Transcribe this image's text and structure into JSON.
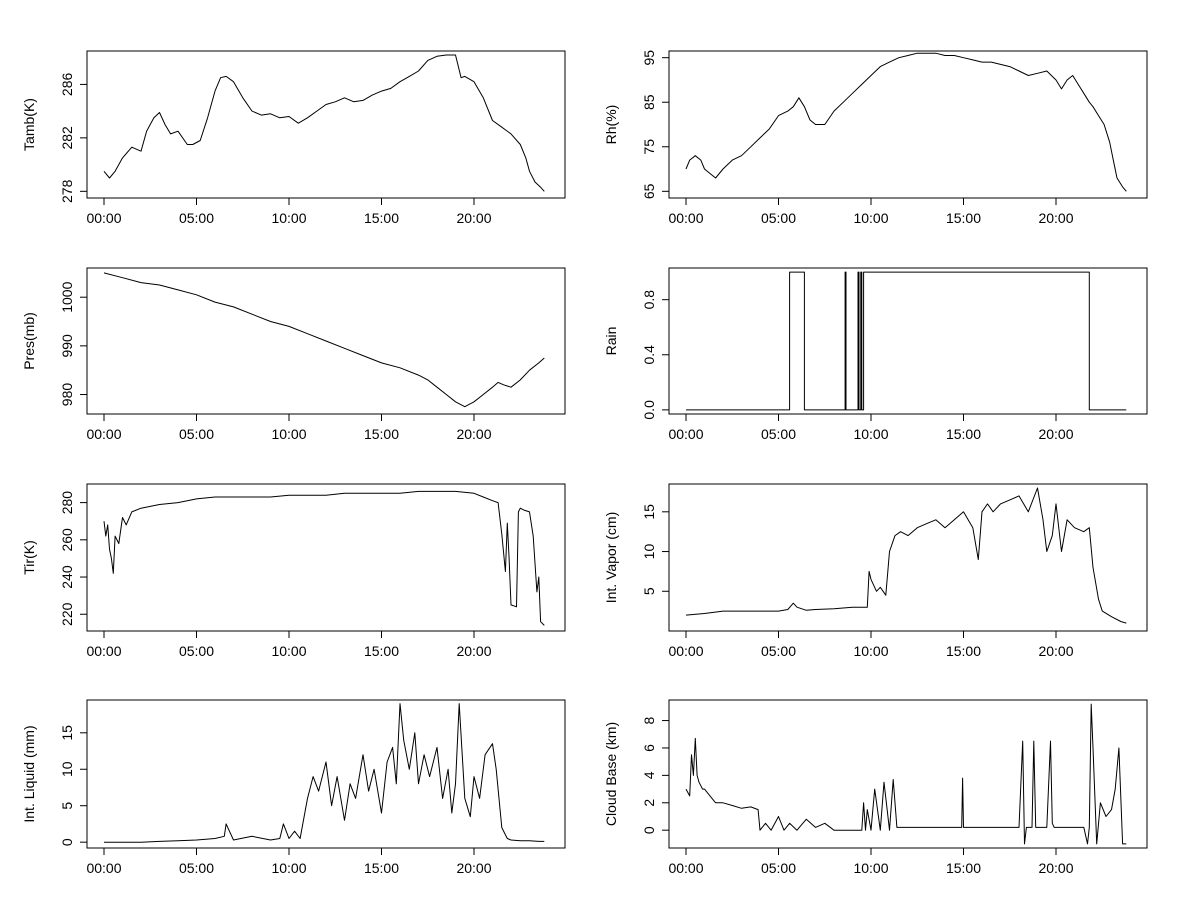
{
  "chart_data": [
    {
      "type": "line",
      "ylabel": "Tamb(K)",
      "xlim": [
        0,
        24
      ],
      "ylim": [
        277.5,
        288.5
      ],
      "xticks": [
        0,
        5,
        10,
        15,
        20
      ],
      "xtick_labels": [
        "00:00",
        "05:00",
        "10:00",
        "15:00",
        "20:00"
      ],
      "yticks": [
        278,
        282,
        286
      ],
      "ytick_labels": [
        "278",
        "282",
        "286"
      ],
      "x": [
        0,
        0.3,
        0.6,
        1.0,
        1.5,
        2.0,
        2.3,
        2.7,
        3.0,
        3.3,
        3.6,
        4.0,
        4.5,
        4.8,
        5.2,
        5.6,
        6.0,
        6.3,
        6.6,
        7.0,
        7.5,
        8.0,
        8.5,
        9.0,
        9.5,
        10.0,
        10.5,
        11.0,
        11.5,
        12.0,
        12.5,
        13.0,
        13.5,
        14.0,
        14.5,
        15.0,
        15.5,
        16.0,
        16.5,
        17.0,
        17.5,
        18.0,
        18.5,
        19.0,
        19.3,
        19.5,
        20.0,
        20.5,
        21.0,
        21.5,
        22.0,
        22.5,
        22.8,
        23.0,
        23.3,
        23.6,
        23.8
      ],
      "y": [
        279.5,
        279.0,
        279.5,
        280.5,
        281.3,
        281.0,
        282.5,
        283.5,
        283.9,
        283.0,
        282.3,
        282.5,
        281.5,
        281.5,
        281.8,
        283.5,
        285.5,
        286.5,
        286.6,
        286.2,
        285.0,
        284.0,
        283.7,
        283.8,
        283.5,
        283.6,
        283.1,
        283.5,
        284.0,
        284.5,
        284.7,
        285.0,
        284.7,
        284.8,
        285.2,
        285.5,
        285.7,
        286.2,
        286.6,
        287.0,
        287.8,
        288.1,
        288.2,
        288.2,
        286.5,
        286.6,
        286.2,
        285.0,
        283.3,
        282.8,
        282.3,
        281.5,
        280.5,
        279.5,
        278.7,
        278.3,
        278.0
      ]
    },
    {
      "type": "line",
      "ylabel": "Rh(%)",
      "xlim": [
        0,
        24
      ],
      "ylim": [
        63.5,
        96.5
      ],
      "xticks": [
        0,
        5,
        10,
        15,
        20
      ],
      "xtick_labels": [
        "00:00",
        "05:00",
        "10:00",
        "15:00",
        "20:00"
      ],
      "yticks": [
        65,
        75,
        85,
        95
      ],
      "ytick_labels": [
        "65",
        "75",
        "85",
        "95"
      ],
      "x": [
        0,
        0.2,
        0.5,
        0.8,
        1.0,
        1.3,
        1.6,
        2.0,
        2.5,
        3.0,
        3.5,
        4.0,
        4.5,
        5.0,
        5.5,
        5.8,
        6.1,
        6.4,
        6.7,
        7.0,
        7.5,
        8.0,
        8.5,
        9.0,
        9.5,
        10.0,
        10.5,
        11.0,
        11.5,
        12.0,
        12.5,
        13.0,
        13.5,
        14.0,
        14.5,
        15.0,
        15.5,
        16.0,
        16.5,
        17.0,
        17.5,
        18.0,
        18.5,
        19.0,
        19.5,
        20.0,
        20.3,
        20.6,
        20.9,
        21.2,
        21.5,
        21.8,
        22.0,
        22.3,
        22.6,
        22.9,
        23.1,
        23.3,
        23.6,
        23.8
      ],
      "y": [
        70,
        72,
        73,
        72,
        70,
        69,
        68,
        70,
        72,
        73,
        75,
        77,
        79,
        82,
        83,
        84,
        86,
        84,
        81,
        80,
        80,
        83,
        85,
        87,
        89,
        91,
        93,
        94,
        95,
        95.5,
        96,
        96,
        96,
        95.5,
        95.5,
        95,
        94.5,
        94,
        94,
        93.5,
        93,
        92,
        91,
        91.5,
        92,
        90,
        88,
        90,
        91,
        89,
        87,
        85,
        84,
        82,
        80,
        76,
        72,
        68,
        66,
        65
      ]
    },
    {
      "type": "line",
      "ylabel": "Pres(mb)",
      "xlim": [
        0,
        24
      ],
      "ylim": [
        976,
        1006
      ],
      "xticks": [
        0,
        5,
        10,
        15,
        20
      ],
      "xtick_labels": [
        "00:00",
        "05:00",
        "10:00",
        "15:00",
        "20:00"
      ],
      "yticks": [
        980,
        990,
        1000
      ],
      "ytick_labels": [
        "980",
        "990",
        "1000"
      ],
      "x": [
        0,
        1,
        2,
        3,
        4,
        5,
        6,
        7,
        8,
        9,
        10,
        11,
        12,
        13,
        14,
        15,
        16,
        17,
        17.5,
        18,
        18.5,
        19,
        19.5,
        20,
        20.5,
        21.0,
        21.3,
        21.6,
        22.0,
        22.5,
        23.0,
        23.5,
        23.8
      ],
      "y": [
        1005,
        1004,
        1003,
        1002.5,
        1001.5,
        1000.5,
        999,
        998,
        996.5,
        995,
        994,
        992.5,
        991,
        989.5,
        988,
        986.5,
        985.5,
        984,
        983,
        981.5,
        980,
        978.5,
        977.5,
        978.5,
        980,
        981.5,
        982.5,
        982,
        981.5,
        983,
        985,
        986.5,
        987.5
      ]
    },
    {
      "type": "line",
      "ylabel": "Rain",
      "xlim": [
        0,
        24
      ],
      "ylim": [
        -0.03,
        1.03
      ],
      "xticks": [
        0,
        5,
        10,
        15,
        20
      ],
      "xtick_labels": [
        "00:00",
        "05:00",
        "10:00",
        "15:00",
        "20:00"
      ],
      "yticks": [
        0,
        0.4,
        0.8
      ],
      "ytick_labels": [
        "0.0",
        "0.4",
        "0.8"
      ],
      "x": [
        0,
        5.6,
        5.6,
        6.4,
        6.4,
        8.6,
        8.6,
        8.65,
        8.65,
        9.3,
        9.3,
        9.35,
        9.35,
        9.45,
        9.45,
        9.5,
        9.5,
        9.6,
        9.6,
        9.65,
        9.65,
        21.8,
        21.8,
        23.8
      ],
      "y": [
        0,
        0,
        1,
        1,
        0,
        0,
        1,
        1,
        0,
        0,
        1,
        1,
        0,
        0,
        1,
        1,
        0,
        0,
        1,
        1,
        1,
        1,
        0,
        0
      ]
    },
    {
      "type": "line",
      "ylabel": "Tir(K)",
      "xlim": [
        0,
        24
      ],
      "ylim": [
        211,
        290
      ],
      "xticks": [
        0,
        5,
        10,
        15,
        20
      ],
      "xtick_labels": [
        "00:00",
        "05:00",
        "10:00",
        "15:00",
        "20:00"
      ],
      "yticks": [
        220,
        240,
        260,
        280
      ],
      "ytick_labels": [
        "220",
        "240",
        "260",
        "280"
      ],
      "x": [
        0,
        0.1,
        0.2,
        0.3,
        0.4,
        0.5,
        0.6,
        0.8,
        1.0,
        1.2,
        1.5,
        2.0,
        3.0,
        4.0,
        5.0,
        6.0,
        7.0,
        8.0,
        9.0,
        10.0,
        11.0,
        12.0,
        13.0,
        14.0,
        15.0,
        16.0,
        17.0,
        18.0,
        19.0,
        20.0,
        20.5,
        21.0,
        21.3,
        21.5,
        21.7,
        21.8,
        21.9,
        22.0,
        22.3,
        22.4,
        22.5,
        22.7,
        23.0,
        23.2,
        23.4,
        23.5,
        23.6,
        23.8
      ],
      "y": [
        270,
        262,
        268,
        255,
        250,
        242,
        262,
        258,
        272,
        268,
        275,
        277,
        279,
        280,
        282,
        283,
        283,
        283,
        283,
        284,
        284,
        284,
        285,
        285,
        285,
        285,
        286,
        286,
        286,
        285,
        283,
        281,
        280,
        263,
        243,
        269,
        250,
        225,
        224,
        275,
        277,
        276,
        275,
        262,
        232,
        240,
        216,
        214
      ]
    },
    {
      "type": "line",
      "ylabel": "Int. Vapor (cm)",
      "xlim": [
        0,
        24
      ],
      "ylim": [
        0,
        18.5
      ],
      "xticks": [
        0,
        5,
        10,
        15,
        20
      ],
      "xtick_labels": [
        "00:00",
        "05:00",
        "10:00",
        "15:00",
        "20:00"
      ],
      "yticks": [
        5,
        10,
        15
      ],
      "ytick_labels": [
        "5",
        "10",
        "15"
      ],
      "x": [
        0,
        1,
        2,
        3,
        4,
        5,
        5.5,
        5.8,
        6.0,
        6.5,
        7,
        8,
        9,
        9.8,
        9.9,
        10.0,
        10.3,
        10.5,
        10.8,
        11.0,
        11.3,
        11.6,
        12.0,
        12.5,
        13.0,
        13.5,
        14.0,
        14.5,
        15.0,
        15.5,
        15.8,
        16.0,
        16.3,
        16.6,
        17.0,
        17.5,
        18.0,
        18.5,
        19.0,
        19.3,
        19.5,
        19.8,
        20.0,
        20.3,
        20.6,
        21.0,
        21.5,
        21.8,
        22.0,
        22.3,
        22.5,
        23.0,
        23.5,
        23.8
      ],
      "y": [
        2,
        2.2,
        2.5,
        2.5,
        2.5,
        2.5,
        2.7,
        3.5,
        3,
        2.6,
        2.7,
        2.8,
        3,
        3,
        7.5,
        6.5,
        5,
        5.5,
        4.5,
        10,
        12,
        12.5,
        12,
        13,
        13.5,
        14,
        13,
        14,
        15,
        13,
        9,
        15,
        16,
        15,
        16,
        16.5,
        17,
        15,
        18,
        14,
        10,
        12,
        16,
        10,
        14,
        13,
        12.5,
        13,
        8,
        4,
        2.5,
        1.8,
        1.2,
        1
      ]
    },
    {
      "type": "line",
      "ylabel": "Int. Liquid (mm)",
      "xlim": [
        0,
        24
      ],
      "ylim": [
        -0.8,
        19.5
      ],
      "xticks": [
        0,
        5,
        10,
        15,
        20
      ],
      "xtick_labels": [
        "00:00",
        "05:00",
        "10:00",
        "15:00",
        "20:00"
      ],
      "yticks": [
        0,
        5,
        10,
        15
      ],
      "ytick_labels": [
        "0",
        "5",
        "10",
        "15"
      ],
      "x": [
        0,
        1,
        2,
        3,
        4,
        5,
        6,
        6.5,
        6.6,
        7,
        8,
        9,
        9.5,
        9.7,
        10,
        10.3,
        10.6,
        11,
        11.3,
        11.6,
        12,
        12.3,
        12.6,
        13,
        13.3,
        13.6,
        14,
        14.3,
        14.6,
        15,
        15.3,
        15.6,
        15.8,
        16,
        16.2,
        16.5,
        16.8,
        17,
        17.3,
        17.6,
        18,
        18.3,
        18.6,
        18.8,
        19.0,
        19.2,
        19.5,
        19.8,
        20,
        20.3,
        20.6,
        21,
        21.2,
        21.5,
        21.8,
        22,
        22.5,
        23,
        23.5,
        23.8
      ],
      "y": [
        0,
        0,
        0,
        0.1,
        0.2,
        0.3,
        0.5,
        0.8,
        2.5,
        0.3,
        0.8,
        0.3,
        0.5,
        2.5,
        0.5,
        1.5,
        0.5,
        6,
        9,
        7,
        11,
        5,
        9,
        3,
        8,
        6,
        12,
        7,
        10,
        4,
        11,
        13,
        8,
        19,
        14,
        10,
        15,
        8,
        12,
        9,
        13,
        6,
        10,
        4,
        8,
        19,
        6,
        3.5,
        9,
        6,
        12,
        13.5,
        10,
        2,
        0.5,
        0.3,
        0.2,
        0.2,
        0.1,
        0.1
      ]
    },
    {
      "type": "line",
      "ylabel": "Cloud Base (km)",
      "xlim": [
        0,
        24
      ],
      "ylim": [
        -1.3,
        9.5
      ],
      "xticks": [
        0,
        5,
        10,
        15,
        20
      ],
      "xtick_labels": [
        "00:00",
        "05:00",
        "10:00",
        "15:00",
        "20:00"
      ],
      "yticks": [
        0,
        2,
        4,
        6,
        8
      ],
      "ytick_labels": [
        "0",
        "2",
        "4",
        "6",
        "8"
      ],
      "x": [
        0,
        0.2,
        0.3,
        0.4,
        0.5,
        0.6,
        0.7,
        0.9,
        1.0,
        1.3,
        1.6,
        2.0,
        2.5,
        3.0,
        3.5,
        3.9,
        4.0,
        4.3,
        4.6,
        5.0,
        5.3,
        5.6,
        6.0,
        6.5,
        7.0,
        7.5,
        8.0,
        9.0,
        9.5,
        9.6,
        9.7,
        9.8,
        10.0,
        10.2,
        10.5,
        10.7,
        11.0,
        11.2,
        11.4,
        12,
        13,
        14,
        14.9,
        14.95,
        15.0,
        16,
        17,
        18,
        18.2,
        18.3,
        18.4,
        18.7,
        18.8,
        18.9,
        19.5,
        19.7,
        19.8,
        19.9,
        20.2,
        21.0,
        21.5,
        21.7,
        21.8,
        21.9,
        22.0,
        22.2,
        22.4,
        22.7,
        23.0,
        23.2,
        23.4,
        23.6,
        23.8
      ],
      "y": [
        3,
        2.5,
        5.5,
        4,
        6.7,
        4,
        3.5,
        3,
        3,
        2.5,
        2,
        2,
        1.8,
        1.6,
        1.7,
        1.5,
        0,
        0.5,
        0,
        1,
        0,
        0.5,
        0,
        0.8,
        0.2,
        0.5,
        0,
        0,
        0,
        2,
        0,
        1.5,
        0,
        3,
        0,
        3.5,
        0,
        3.7,
        0.2,
        0.2,
        0.2,
        0.2,
        0.2,
        3.8,
        0.2,
        0.2,
        0.2,
        0.2,
        6.5,
        -1,
        0.2,
        0.2,
        6.5,
        0.2,
        0.2,
        6.5,
        0.5,
        0.2,
        0.2,
        0.2,
        0.2,
        -1,
        0.2,
        9.2,
        6,
        -1,
        2,
        1,
        1.5,
        3,
        6,
        -1,
        -1
      ]
    }
  ]
}
